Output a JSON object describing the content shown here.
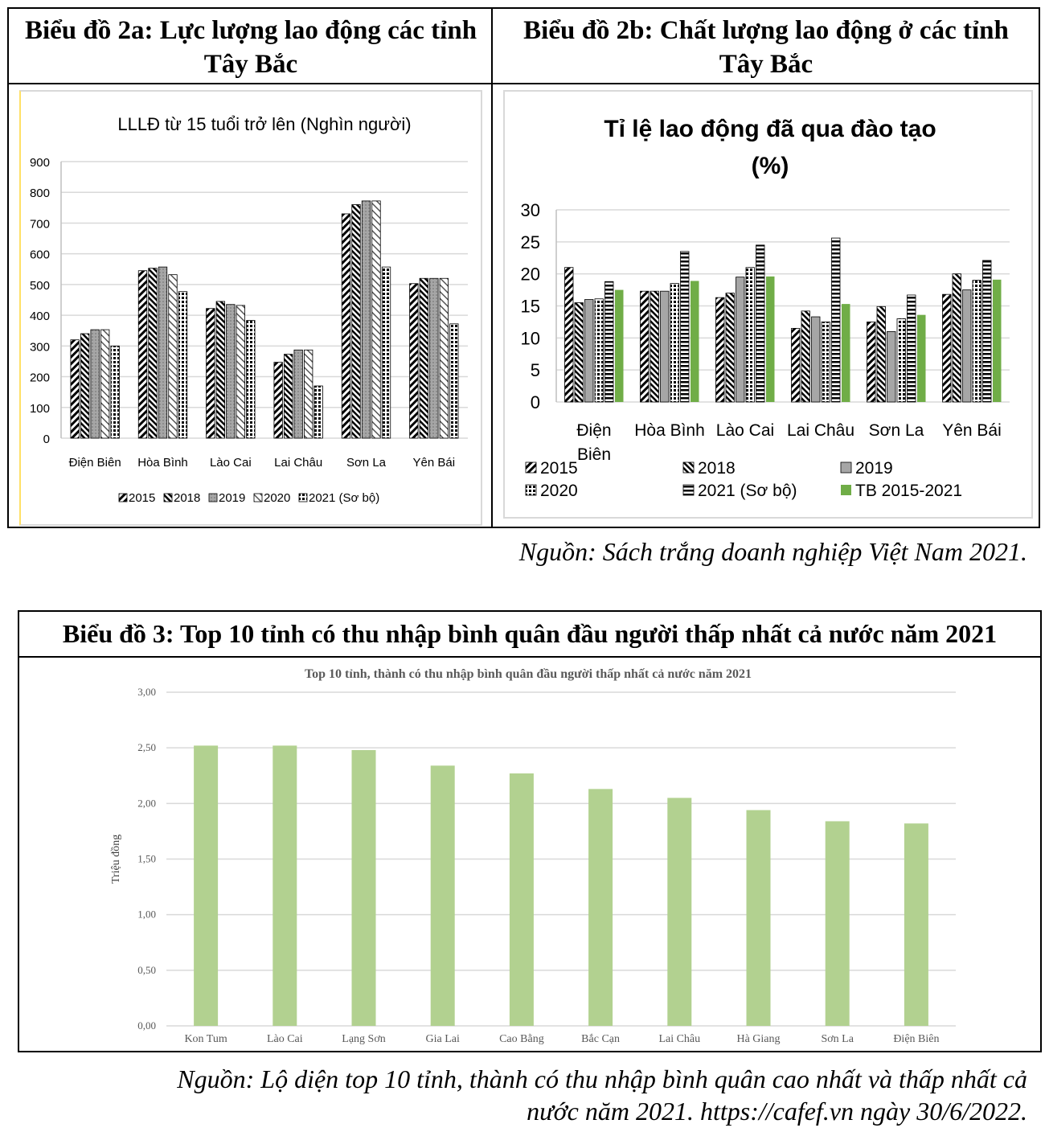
{
  "panels": {
    "chart2a_heading": "Biểu đồ 2a: Lực lượng lao động các tỉnh Tây Bắc",
    "chart2b_heading": "Biểu đồ 2b: Chất lượng lao động ở các tỉnh Tây Bắc",
    "source_1": "Nguồn: Sách trắng doanh nghiệp Việt Nam 2021.",
    "chart3_heading": "Biểu đồ 3: Top 10 tỉnh có thu nhập bình quân đầu người thấp nhất cả nước năm 2021",
    "source_2_line1": "Nguồn: Lộ diện top 10 tỉnh, thành có thu nhập bình quân cao nhất và thấp nhất cả",
    "source_2_line2": "nước năm 2021. https://cafef.vn ngày 30/6/2022."
  },
  "chart_data": [
    {
      "type": "bar",
      "title": "LLLĐ từ 15 tuổi trở lên (Nghìn người)",
      "categories": [
        "Điện Biên",
        "Hòa Bình",
        "Lào Cai",
        "Lai Châu",
        "Sơn La",
        "Yên Bái"
      ],
      "ylim": [
        0,
        900
      ],
      "yticks": [
        0,
        100,
        200,
        300,
        400,
        500,
        600,
        700,
        800,
        900
      ],
      "grid": true,
      "legend": "bottom",
      "series": [
        {
          "name": "2015",
          "values": [
            320,
            545,
            422,
            247,
            730,
            503
          ]
        },
        {
          "name": "2018",
          "values": [
            340,
            553,
            445,
            273,
            760,
            520
          ]
        },
        {
          "name": "2019",
          "values": [
            353,
            557,
            435,
            287,
            772,
            520
          ]
        },
        {
          "name": "2020",
          "values": [
            353,
            532,
            432,
            287,
            772,
            520
          ]
        },
        {
          "name": "2021 (Sơ bộ)",
          "values": [
            300,
            477,
            383,
            170,
            557,
            372
          ]
        }
      ]
    },
    {
      "type": "bar",
      "title": "Tỉ lệ lao động đã qua đào tạo",
      "subtitle": "(%)",
      "categories": [
        [
          "Điện",
          "Biên"
        ],
        [
          "Hòa Bình"
        ],
        [
          "Lào Cai"
        ],
        [
          "Lai Châu"
        ],
        [
          "Sơn La"
        ],
        [
          "Yên Bái"
        ]
      ],
      "ylim": [
        0,
        30
      ],
      "yticks": [
        0,
        5,
        10,
        15,
        20,
        25,
        30
      ],
      "grid": true,
      "legend": "bottom",
      "series": [
        {
          "name": "2015",
          "values": [
            21,
            17.3,
            16.3,
            11.5,
            12.5,
            16.8
          ]
        },
        {
          "name": "2018",
          "values": [
            15.5,
            17.3,
            17,
            14.2,
            14.9,
            20
          ]
        },
        {
          "name": "2019",
          "values": [
            16,
            17.3,
            19.5,
            13.3,
            11,
            17.5
          ]
        },
        {
          "name": "2020",
          "values": [
            16.1,
            18.5,
            21,
            12.5,
            13,
            19
          ]
        },
        {
          "name": "2021 (Sơ bộ)",
          "values": [
            18.8,
            23.5,
            24.5,
            25.6,
            16.7,
            22.1
          ]
        },
        {
          "name": "TB 2015-2021",
          "values": [
            17.5,
            18.9,
            19.6,
            15.3,
            13.6,
            19.1
          ]
        }
      ],
      "colors": {
        "tb": "#70ad47"
      }
    },
    {
      "type": "bar",
      "title": "Top 10 tỉnh, thành có thu nhập bình quân đầu người thấp nhất cả nước năm 2021",
      "ylabel": "Triệu đồng",
      "categories": [
        "Kon Tum",
        "Lào Cai",
        "Lạng Sơn",
        "Gia Lai",
        "Cao Bằng",
        "Bắc Cạn",
        "Lai Châu",
        "Hà Giang",
        "Sơn La",
        "Điện Biên"
      ],
      "values": [
        2.52,
        2.52,
        2.48,
        2.34,
        2.27,
        2.13,
        2.05,
        1.94,
        1.84,
        1.82
      ],
      "ylim": [
        0,
        3
      ],
      "yticks": [
        "0,00",
        "0,50",
        "1,00",
        "1,50",
        "2,00",
        "2,50",
        "3,00"
      ],
      "grid": true,
      "colors": {
        "bar": "#b2d190"
      }
    }
  ]
}
